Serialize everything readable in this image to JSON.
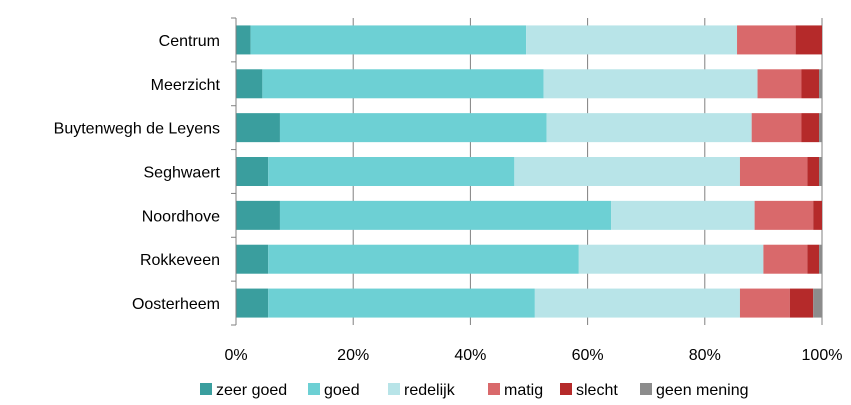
{
  "chart_data": {
    "type": "bar",
    "orientation": "horizontal",
    "stacked": "percent",
    "categories": [
      "Centrum",
      "Meerzicht",
      "Buytenwegh de Leyens",
      "Seghwaert",
      "Noordhove",
      "Rokkeveen",
      "Oosterheem"
    ],
    "series": [
      {
        "name": "zeer goed",
        "color": "#3a9e9e",
        "values": [
          2.5,
          4.5,
          7.5,
          5.5,
          7.5,
          5.5,
          5.5
        ]
      },
      {
        "name": "goed",
        "color": "#6dd0d4",
        "values": [
          47.0,
          48.0,
          45.5,
          42.0,
          56.5,
          53.0,
          45.5
        ]
      },
      {
        "name": "redelijk",
        "color": "#b8e4e8",
        "values": [
          36.0,
          36.5,
          35.0,
          38.5,
          24.5,
          31.5,
          35.0
        ]
      },
      {
        "name": "matig",
        "color": "#d9696b",
        "values": [
          10.0,
          7.5,
          8.5,
          11.5,
          10.0,
          7.5,
          8.5
        ]
      },
      {
        "name": "slecht",
        "color": "#b52a2a",
        "values": [
          4.5,
          3.0,
          3.0,
          2.0,
          1.5,
          2.0,
          4.0
        ]
      },
      {
        "name": "geen mening",
        "color": "#8c8c8c",
        "values": [
          0.0,
          0.5,
          0.5,
          0.5,
          0.0,
          0.5,
          1.5
        ]
      }
    ],
    "xlim": [
      0,
      100
    ],
    "xticks": [
      "0%",
      "20%",
      "40%",
      "60%",
      "80%",
      "100%"
    ],
    "grid": true,
    "legend_position": "bottom",
    "title": "",
    "xlabel": "",
    "ylabel": ""
  }
}
